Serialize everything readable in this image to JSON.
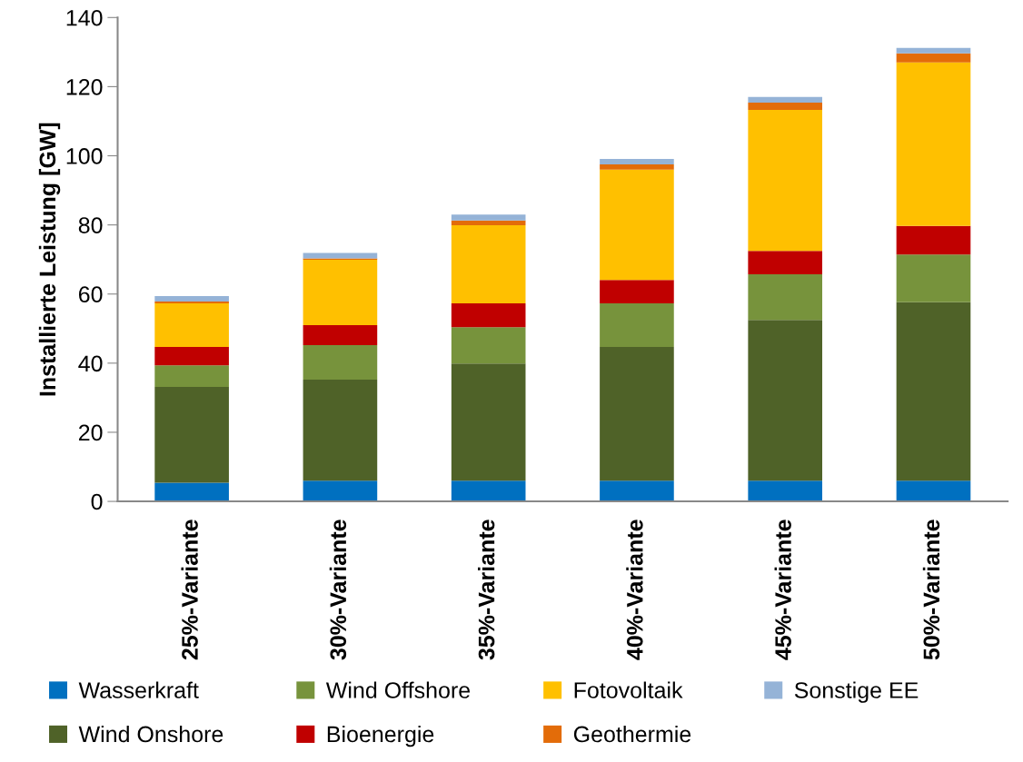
{
  "chart_data": {
    "type": "bar",
    "stacked": true,
    "ylabel": "Installierte Leistung [GW]",
    "categories": [
      "25%-Variante",
      "30%-Variante",
      "35%-Variante",
      "40%-Variante",
      "45%-Variante",
      "50%-Variante"
    ],
    "series": [
      {
        "name": "Wasserkraft",
        "color": "#0070c0",
        "values": [
          5.4,
          6.0,
          6.0,
          6.0,
          6.0,
          6.0
        ]
      },
      {
        "name": "Wind Onshore",
        "color": "#4f6228",
        "values": [
          27.7,
          29.2,
          33.9,
          38.7,
          46.5,
          51.6
        ]
      },
      {
        "name": "Wind Offshore",
        "color": "#77933c",
        "values": [
          6.3,
          10.0,
          10.5,
          12.6,
          13.2,
          13.8
        ]
      },
      {
        "name": "Bioenergie",
        "color": "#c00000",
        "values": [
          5.3,
          5.8,
          6.9,
          6.8,
          6.8,
          8.3
        ]
      },
      {
        "name": "Fotovoltaik",
        "color": "#ffc000",
        "values": [
          12.6,
          18.9,
          22.6,
          31.9,
          40.8,
          47.3
        ]
      },
      {
        "name": "Geothermie",
        "color": "#e36c09",
        "values": [
          0.5,
          0.4,
          1.4,
          1.5,
          2.1,
          2.6
        ]
      },
      {
        "name": "Sonstige EE",
        "color": "#95b3d7",
        "values": [
          1.6,
          1.6,
          1.7,
          1.6,
          1.6,
          1.6
        ]
      }
    ],
    "ylim": [
      0,
      140
    ],
    "yticks": [
      0,
      20,
      40,
      60,
      80,
      100,
      120,
      140
    ],
    "grid": false,
    "legend": "bottom"
  }
}
